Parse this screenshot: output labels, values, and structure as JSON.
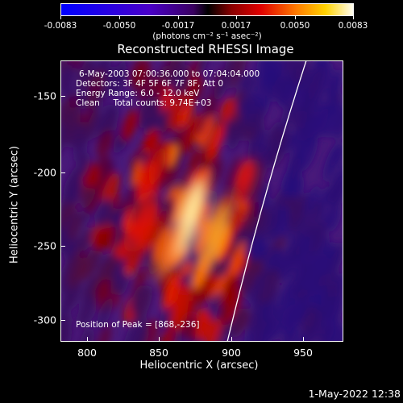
{
  "colorbar": {
    "tick_labels": [
      "-0.0083",
      "-0.0050",
      "-0.0017",
      "0.0017",
      "0.0050",
      "0.0083"
    ],
    "units": "(photons cm⁻² s⁻¹ asec⁻²)"
  },
  "title": "Reconstructed RHESSI Image",
  "info": {
    "time_range": "6-May-2003 07:00:36.000 to 07:04:04.000",
    "detectors": "Detectors: 3F 4F 5F 6F 7F 8F, Att 0",
    "energy": "Energy Range: 6.0 - 12.0 keV",
    "clean": "Clean     Total counts: 9.74E+03",
    "peak": "Position of Peak = [868,-236]"
  },
  "xaxis": {
    "title": "Heliocentric X (arcsec)",
    "ticks": [
      "800",
      "850",
      "900",
      "950"
    ]
  },
  "yaxis": {
    "title": "Heliocentric Y (arcsec)",
    "ticks": [
      "-150",
      "-200",
      "-250",
      "-300"
    ]
  },
  "footer": {
    "date": "1-May-2022 12:38"
  }
}
